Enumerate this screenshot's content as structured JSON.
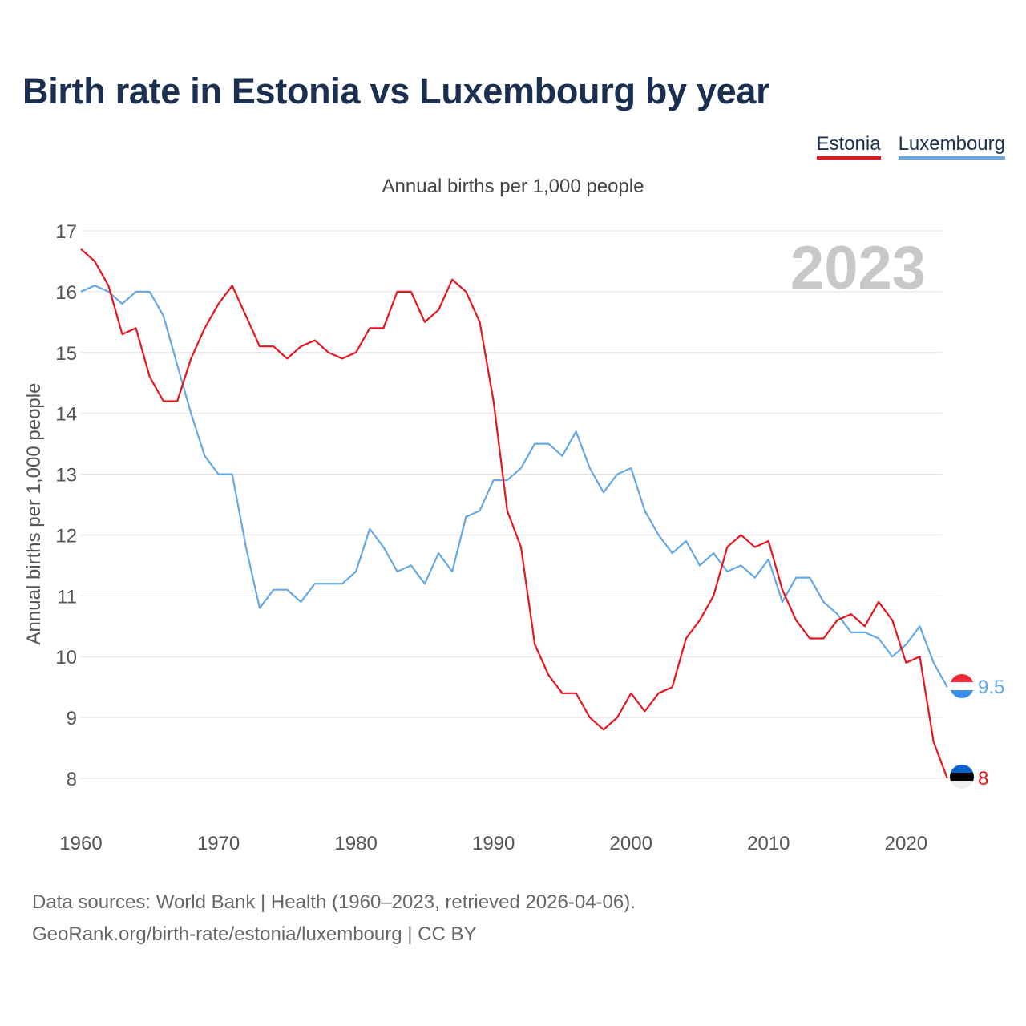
{
  "page": {
    "title": "Birth rate in Estonia vs Luxembourg by year",
    "source_line1": "Data sources: World Bank | Health (1960–2023, retrieved 2026-04-06).",
    "source_line2": "GeoRank.org/birth-rate/estonia/luxembourg | CC BY"
  },
  "chart_data": {
    "type": "line",
    "title": "Birth rate in Estonia vs Luxembourg by year",
    "subtitle": "Annual births per 1,000 people",
    "ylabel": "Annual births per 1,000 people",
    "xlabel": "",
    "year_label": "2023",
    "xlim": [
      1960,
      2024
    ],
    "ylim": [
      7.5,
      17
    ],
    "x_ticks": [
      1960,
      1970,
      1980,
      1990,
      2000,
      2010,
      2020
    ],
    "y_ticks": [
      8,
      9,
      10,
      11,
      12,
      13,
      14,
      15,
      16,
      17
    ],
    "grid": true,
    "legend_position": "top-right",
    "x": [
      1960,
      1961,
      1962,
      1963,
      1964,
      1965,
      1966,
      1967,
      1968,
      1969,
      1970,
      1971,
      1972,
      1973,
      1974,
      1975,
      1976,
      1977,
      1978,
      1979,
      1980,
      1981,
      1982,
      1983,
      1984,
      1985,
      1986,
      1987,
      1988,
      1989,
      1990,
      1991,
      1992,
      1993,
      1994,
      1995,
      1996,
      1997,
      1998,
      1999,
      2000,
      2001,
      2002,
      2003,
      2004,
      2005,
      2006,
      2007,
      2008,
      2009,
      2010,
      2011,
      2012,
      2013,
      2014,
      2015,
      2016,
      2017,
      2018,
      2019,
      2020,
      2021,
      2022,
      2023
    ],
    "series": [
      {
        "name": "Estonia",
        "color": "#e8141e",
        "end_label": "8",
        "flag": "estonia-flag",
        "values": [
          16.7,
          16.5,
          16.1,
          15.3,
          15.4,
          14.6,
          14.2,
          14.2,
          14.9,
          15.4,
          15.8,
          16.1,
          15.6,
          15.1,
          15.1,
          14.9,
          15.1,
          15.2,
          15.0,
          14.9,
          15.0,
          15.4,
          15.4,
          16.0,
          16.0,
          15.5,
          15.7,
          16.2,
          16.0,
          15.5,
          14.2,
          12.4,
          11.8,
          10.2,
          9.7,
          9.4,
          9.4,
          9.0,
          8.8,
          9.0,
          9.4,
          9.1,
          9.4,
          9.5,
          10.3,
          10.6,
          11.0,
          11.8,
          12.0,
          11.8,
          11.9,
          11.1,
          10.6,
          10.3,
          10.3,
          10.6,
          10.7,
          10.5,
          10.9,
          10.6,
          9.9,
          10.0,
          8.6,
          8.0
        ]
      },
      {
        "name": "Luxembourg",
        "color": "#64a8e6",
        "end_label": "9.5",
        "flag": "luxembourg-flag",
        "values": [
          16.0,
          16.1,
          16.0,
          15.8,
          16.0,
          16.0,
          15.6,
          14.8,
          14.0,
          13.3,
          13.0,
          13.0,
          11.8,
          10.8,
          11.1,
          11.1,
          10.9,
          11.2,
          11.2,
          11.2,
          11.4,
          12.1,
          11.8,
          11.4,
          11.5,
          11.2,
          11.7,
          11.4,
          12.3,
          12.4,
          12.9,
          12.9,
          13.1,
          13.5,
          13.5,
          13.3,
          13.7,
          13.1,
          12.7,
          13.0,
          13.1,
          12.4,
          12.0,
          11.7,
          11.9,
          11.5,
          11.7,
          11.4,
          11.5,
          11.3,
          11.6,
          10.9,
          11.3,
          11.3,
          10.9,
          10.7,
          10.4,
          10.4,
          10.3,
          10.0,
          10.2,
          10.5,
          9.9,
          9.5
        ]
      }
    ]
  }
}
